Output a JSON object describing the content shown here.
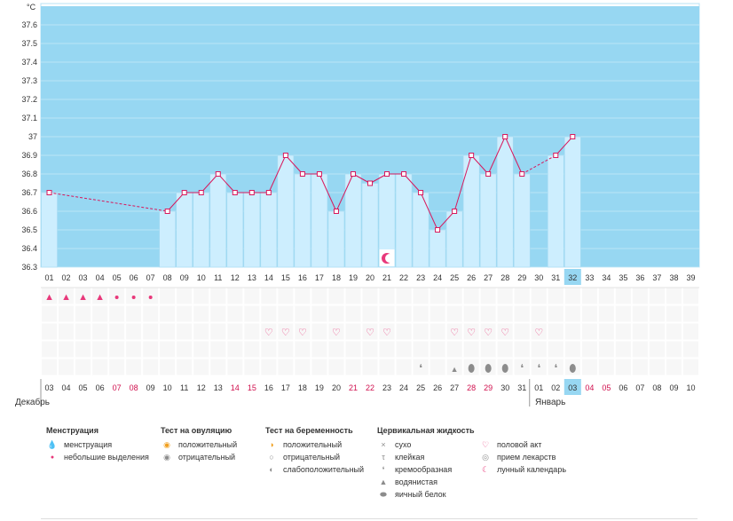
{
  "chart_data": {
    "type": "line",
    "title": "",
    "ylabel": "°C",
    "ylim": [
      36.3,
      37.7
    ],
    "yticks": [
      "36.3",
      "36.4",
      "36.5",
      "36.6",
      "36.7",
      "36.8",
      "36.9",
      "37",
      "37.1",
      "37.2",
      "37.3",
      "37.4",
      "37.5",
      "37.6"
    ],
    "cycle_days": [
      "01",
      "02",
      "03",
      "04",
      "05",
      "06",
      "07",
      "08",
      "09",
      "10",
      "11",
      "12",
      "13",
      "14",
      "15",
      "16",
      "17",
      "18",
      "19",
      "20",
      "21",
      "22",
      "23",
      "24",
      "25",
      "26",
      "27",
      "28",
      "29",
      "30",
      "31",
      "32",
      "33",
      "34",
      "35",
      "36",
      "37",
      "38",
      "39"
    ],
    "dates": [
      "03",
      "04",
      "05",
      "06",
      "07",
      "08",
      "09",
      "10",
      "11",
      "12",
      "13",
      "14",
      "15",
      "16",
      "17",
      "18",
      "19",
      "20",
      "21",
      "22",
      "23",
      "24",
      "25",
      "26",
      "27",
      "28",
      "29",
      "30",
      "31",
      "01",
      "02",
      "03",
      "04",
      "05",
      "06",
      "07",
      "08",
      "09",
      "10"
    ],
    "weekend_date_indices": [
      4,
      5,
      11,
      12,
      18,
      19,
      25,
      26,
      32,
      33
    ],
    "current_day_index": 31,
    "temperatures": [
      36.7,
      null,
      null,
      null,
      null,
      null,
      null,
      36.6,
      36.7,
      36.7,
      36.8,
      36.7,
      36.7,
      36.7,
      36.9,
      36.8,
      36.8,
      36.6,
      36.8,
      36.75,
      36.8,
      36.8,
      36.7,
      36.5,
      36.6,
      36.9,
      36.8,
      37.0,
      36.8,
      null,
      36.9,
      37.0,
      null,
      null,
      null,
      null,
      null,
      null,
      null
    ],
    "moon_day_index": 20
  },
  "months": {
    "start": "Декабрь",
    "next": "Январь"
  },
  "rows": {
    "menstruation": {
      "heavy": [
        0,
        1,
        2,
        3
      ],
      "light": [
        4,
        5,
        6
      ]
    },
    "sex": [
      13,
      14,
      15,
      17,
      19,
      20,
      24,
      25,
      26,
      27,
      29
    ],
    "fluid": {
      "creamy": [
        22,
        28,
        29,
        30
      ],
      "watery": [
        24
      ],
      "egg_white": [
        25,
        26,
        27,
        31
      ]
    }
  },
  "legend": {
    "menstruation": {
      "title": "Менструация",
      "items": [
        "менструация",
        "небольшие выделения"
      ]
    },
    "ovulation": {
      "title": "Тест на овуляцию",
      "items": [
        "положительный",
        "отрицательный"
      ]
    },
    "pregnancy": {
      "title": "Тест на беременность",
      "items": [
        "положительный",
        "отрицательный",
        "слабоположительный"
      ]
    },
    "cervical": {
      "title": "Цервикальная жидкость",
      "items": [
        "сухо",
        "клейкая",
        "кремообразная",
        "водянистая",
        "яичный белок"
      ]
    },
    "other": {
      "items": [
        "половой акт",
        "прием лекарств",
        "лунный календарь"
      ]
    }
  },
  "colors": {
    "sky": "#97d7f2",
    "bar": "#cdeefe",
    "bar_border": "#a6dbf2",
    "line": "#d8185c",
    "highlight": "#97d7f2",
    "red_text": "#d0104e"
  }
}
